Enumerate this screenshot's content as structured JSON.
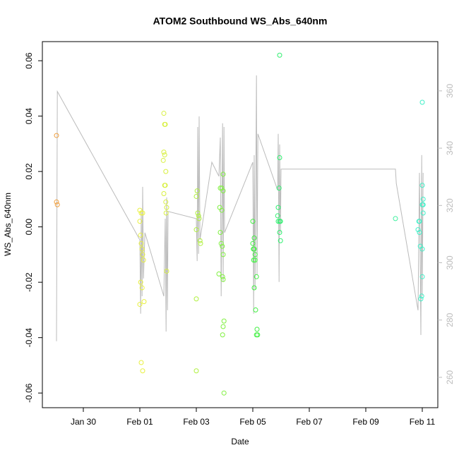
{
  "chart_data": {
    "type": "scatter",
    "title": "ATOM2 Southbound WS_Abs_640nm",
    "x_label": "Date",
    "y_label": "WS_Abs_640nm",
    "xlim": [
      28.55,
      42.55
    ],
    "xticks": [
      {
        "value": 30,
        "label": "Jan 30"
      },
      {
        "value": 32,
        "label": "Feb 01"
      },
      {
        "value": 34,
        "label": "Feb 03"
      },
      {
        "value": 36,
        "label": "Feb 05"
      },
      {
        "value": 38,
        "label": "Feb 07"
      },
      {
        "value": 40,
        "label": "Feb 09"
      },
      {
        "value": 42,
        "label": "Feb 11"
      }
    ],
    "ylim": [
      -0.0653,
      0.0669
    ],
    "yticks": [
      -0.06,
      -0.04,
      -0.02,
      {
        "value": 0,
        "label": "0.00"
      },
      0.02,
      0.04,
      0.06
    ],
    "y2lim": [
      249.4,
      377.2
    ],
    "y2ticks": [
      260,
      280,
      300,
      320,
      340,
      360
    ],
    "series": [
      {
        "color": "#f0a040",
        "x": [
          29.05,
          29.05,
          29.08
        ],
        "values": [
          0.033,
          0.009,
          0.008
        ]
      },
      {
        "color": "#e8f040",
        "x": [
          32.0,
          32.05,
          32.1,
          32.0,
          32.03,
          32.05,
          32.08,
          32.1,
          32.13,
          32.03,
          32.08,
          32.15,
          32.0,
          32.05,
          32.1
        ],
        "values": [
          0.006,
          0.005,
          0.005,
          0.002,
          -0.003,
          -0.006,
          -0.008,
          -0.01,
          -0.012,
          -0.02,
          -0.022,
          -0.027,
          -0.028,
          -0.049,
          -0.052
        ]
      },
      {
        "color": "#d8f040",
        "x": [
          32.85,
          32.88,
          32.9,
          32.85,
          32.88,
          32.83,
          32.92,
          32.88,
          32.9,
          32.85,
          32.92,
          32.95,
          32.93,
          32.95
        ],
        "values": [
          0.041,
          0.037,
          0.037,
          0.027,
          0.026,
          0.024,
          0.02,
          0.015,
          0.015,
          0.012,
          0.009,
          0.007,
          0.005,
          -0.016
        ]
      },
      {
        "color": "#b0f040",
        "x": [
          34.03,
          34.0,
          34.05,
          34.08,
          34.1,
          34.0,
          34.13,
          34.15,
          34.0,
          34.0
        ],
        "values": [
          0.013,
          0.011,
          0.005,
          0.004,
          0.003,
          -0.001,
          -0.005,
          -0.006,
          -0.026,
          -0.052
        ]
      },
      {
        "color": "#80f040",
        "x": [
          34.95,
          34.85,
          34.9,
          34.95,
          34.83,
          34.9,
          34.85,
          34.88,
          34.92,
          34.95,
          34.8,
          34.93,
          34.95,
          34.98,
          34.95,
          34.93,
          34.98
        ],
        "values": [
          0.019,
          0.014,
          0.014,
          0.013,
          0.007,
          0.006,
          -0.002,
          -0.006,
          -0.007,
          -0.01,
          -0.017,
          -0.018,
          -0.019,
          -0.034,
          -0.036,
          -0.039,
          -0.06
        ]
      },
      {
        "color": "#40f040",
        "x": [
          36.0,
          36.05,
          36.0,
          36.02,
          36.05,
          36.08,
          36.03,
          36.08,
          36.13,
          36.05,
          36.1,
          36.15,
          36.13,
          36.17
        ],
        "values": [
          0.002,
          -0.004,
          -0.006,
          -0.008,
          -0.008,
          -0.01,
          -0.012,
          -0.012,
          -0.018,
          -0.022,
          -0.03,
          -0.037,
          -0.039,
          -0.039
        ]
      },
      {
        "color": "#30f070",
        "x": [
          36.95,
          36.95,
          36.93,
          36.9,
          36.88,
          36.9,
          36.95,
          36.98,
          36.95,
          36.98
        ],
        "values": [
          0.062,
          0.025,
          0.014,
          0.007,
          0.004,
          0.002,
          0.002,
          0.002,
          -0.002,
          -0.005
        ]
      },
      {
        "color": "#40f0a0",
        "x": [
          41.05
        ],
        "values": [
          0.003
        ]
      },
      {
        "color": "#40f0c8",
        "x": [
          42.0,
          42.0,
          42.03,
          42.0,
          42.03,
          42.03,
          41.88,
          41.9,
          41.85,
          41.9,
          41.93,
          42.0,
          42.0,
          41.98,
          41.95
        ],
        "values": [
          0.045,
          0.015,
          0.01,
          0.008,
          0.008,
          0.005,
          0.002,
          0.002,
          -0.001,
          -0.002,
          -0.007,
          -0.008,
          -0.018,
          -0.025,
          -0.026
        ]
      }
    ],
    "line": {
      "color": "#bbbbbb",
      "axis": "y2",
      "x": [
        29.05,
        29.08,
        32.0,
        32.03,
        32.05,
        32.08,
        32.1,
        32.13,
        32.18,
        32.85,
        32.9,
        32.93,
        32.95,
        32.98,
        33.0,
        34.0,
        34.03,
        34.05,
        34.08,
        34.1,
        34.13,
        34.55,
        34.8,
        34.85,
        34.88,
        34.93,
        34.95,
        34.98,
        35.0,
        36.0,
        36.03,
        36.05,
        36.08,
        36.13,
        36.15,
        36.18,
        36.88,
        36.9,
        36.93,
        36.95,
        36.98,
        37.0,
        41.05,
        41.08,
        41.85,
        41.9,
        41.95,
        41.98,
        42.0,
        42.03
      ],
      "values": [
        272.6,
        359.8,
        308.0,
        282.2,
        317.9,
        288.3,
        326.5,
        294.5,
        310.5,
        288.3,
        315.4,
        276.0,
        322.8,
        283.4,
        317.9,
        315.4,
        300.6,
        347.4,
        303.1,
        351.1,
        308.0,
        335.1,
        330.2,
        343.7,
        288.3,
        348.7,
        293.3,
        347.4,
        310.5,
        335.1,
        282.2,
        337.6,
        290.8,
        365.4,
        295.7,
        345.0,
        325.3,
        345.0,
        293.3,
        341.3,
        310.5,
        332.7,
        332.7,
        327.7,
        283.4,
        331.4,
        274.8,
        337.6,
        288.3,
        331.4
      ]
    }
  }
}
